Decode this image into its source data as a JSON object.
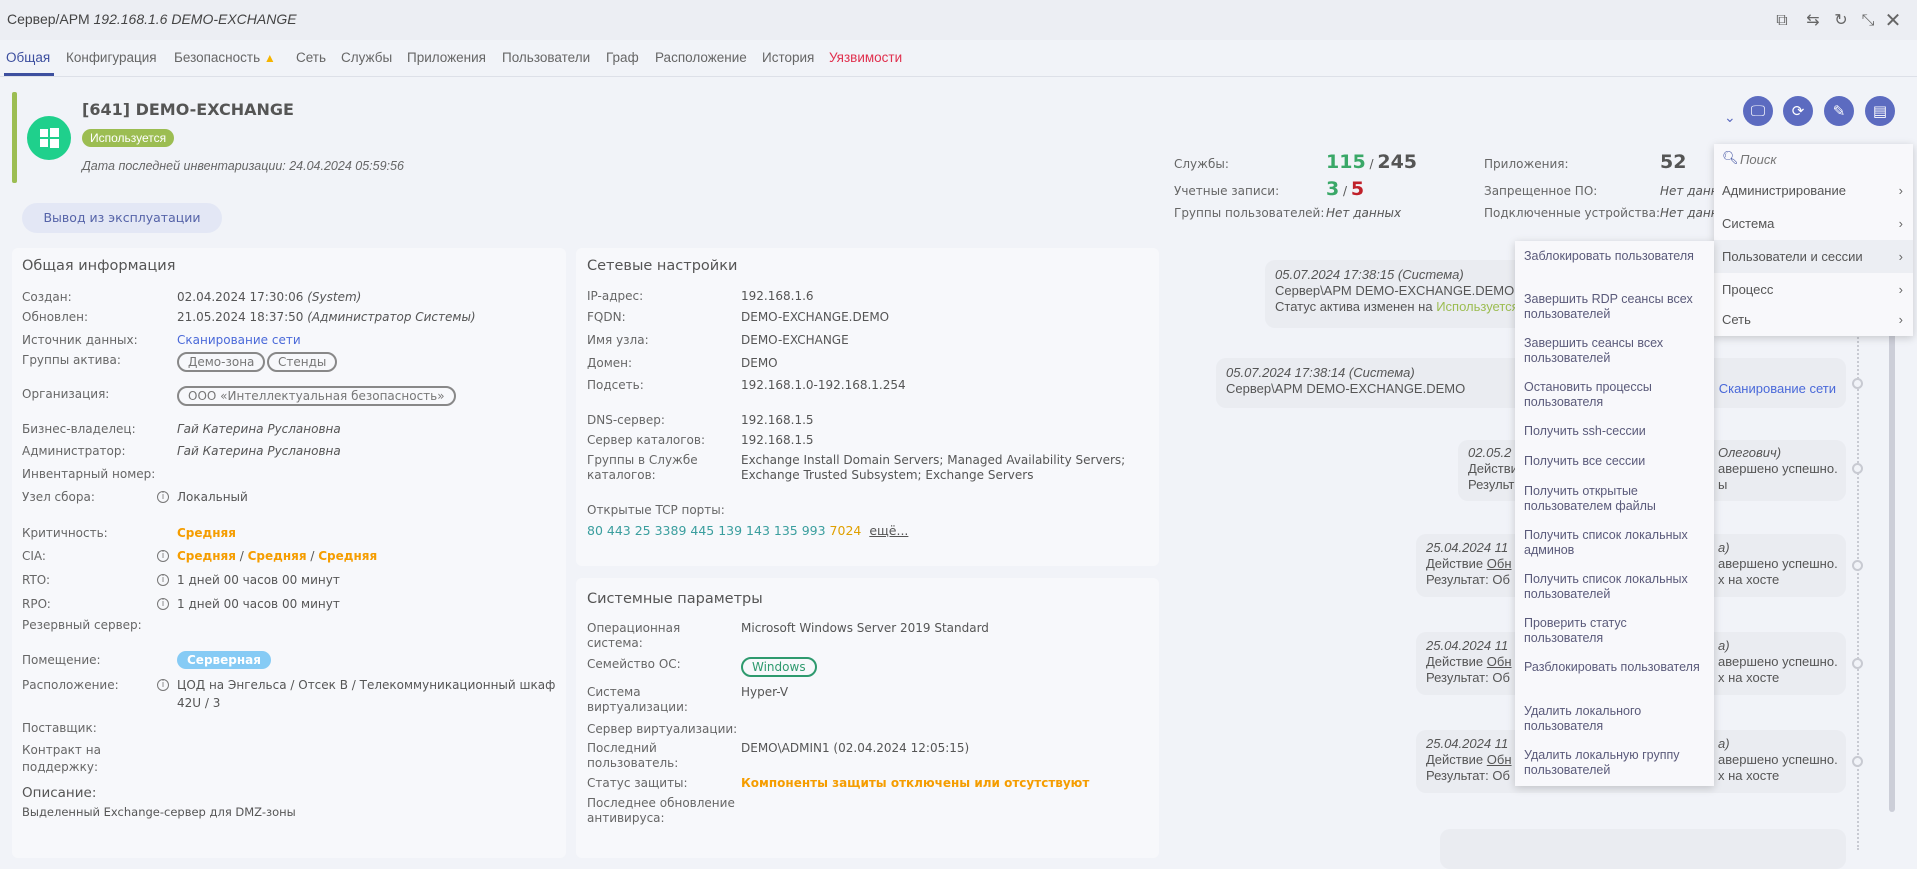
{
  "window": {
    "title_prefix": "Сервер/АРМ",
    "title_italic": "192.168.1.6 DEMO-EXCHANGE",
    "icons": [
      "copy-icon",
      "swap-icon",
      "refresh-icon",
      "minimize-icon",
      "close-icon"
    ]
  },
  "tabs": [
    {
      "label": "Общая",
      "active": true
    },
    {
      "label": "Конфигурация"
    },
    {
      "label": "Безопасность",
      "warning": true
    },
    {
      "label": "Сеть"
    },
    {
      "label": "Службы"
    },
    {
      "label": "Приложения"
    },
    {
      "label": "Пользователи"
    },
    {
      "label": "Граф"
    },
    {
      "label": "Расположение"
    },
    {
      "label": "История"
    },
    {
      "label": "Уязвимости",
      "color": "#e0304e"
    }
  ],
  "header": {
    "title": "[641] DEMO-EXCHANGE",
    "status": "Используется",
    "status_color": "#9cbd52",
    "inventory_date": "Дата последней инвентаризации: 24.04.2024 05:59:56",
    "decommission_button": "Вывод из эксплуатации",
    "os_icon": "windows-icon"
  },
  "stats": {
    "services_label": "Службы:",
    "services_active": "115",
    "services_total": "245",
    "accounts_label": "Учетные записи:",
    "accounts_a": "3",
    "accounts_b": "5",
    "user_groups_label": "Группы пользователей:",
    "user_groups_value": "Нет данных",
    "apps_label": "Приложения:",
    "apps_value": "52",
    "forbidden_label": "Запрещенное ПО:",
    "forbidden_value": "Нет данн",
    "devices_label": "Подключенные устройства:",
    "devices_value": "Нет данн"
  },
  "general": {
    "title": "Общая информация",
    "created_label": "Создан:",
    "created_value": "02.04.2024 17:30:06",
    "created_by": "(System)",
    "updated_label": "Обновлен:",
    "updated_value": "21.05.2024 18:37:50",
    "updated_by": "(Администратор Системы)",
    "source_label": "Источник данных:",
    "source_value": "Сканирование сети",
    "groups_label": "Группы актива:",
    "groups": [
      "Демо-зона",
      "Стенды"
    ],
    "org_label": "Организация:",
    "org_value": "ООО «Интеллектуальная безопасность»",
    "owner_label": "Бизнес-владелец:",
    "owner_value": "Гай Катерина Руслановна",
    "admin_label": "Администратор:",
    "admin_value": "Гай Катерина Руслановна",
    "inv_label": "Инвентарный номер:",
    "node_label": "Узел сбора:",
    "node_value": "Локальный",
    "crit_label": "Критичность:",
    "crit_value": "Средняя",
    "cia_label": "CIA:",
    "cia_values": [
      "Средняя",
      "Средняя",
      "Средняя"
    ],
    "rto_label": "RTO:",
    "rto_value": "1 дней 00 часов 00 минут",
    "rpo_label": "RPO:",
    "rpo_value": "1 дней 00 часов 00 минут",
    "backup_label": "Резервный сервер:",
    "room_label": "Помещение:",
    "room_value": "Серверная",
    "location_label": "Расположение:",
    "location_value_1": "ЦОД на Энгельса / Отсек B / Телекоммуникационный шкаф",
    "location_value_2": "42U / 3",
    "supplier_label": "Поставщик:",
    "contract_label_1": "Контракт на",
    "contract_label_2": "поддержку:",
    "desc_title": "Описание:",
    "desc_value": "Выделенный Exchange-сервер для DMZ-зоны"
  },
  "network": {
    "title": "Сетевые настройки",
    "rows": [
      {
        "label": "IP-адрес:",
        "value": "192.168.1.6"
      },
      {
        "label": "FQDN:",
        "value": "DEMO-EXCHANGE.DEMO"
      },
      {
        "label": "Имя узла:",
        "value": "DEMO-EXCHANGE"
      },
      {
        "label": "Домен:",
        "value": "DEMO"
      },
      {
        "label": "Подсеть:",
        "value": "192.168.1.0-192.168.1.254"
      },
      {
        "label": "DNS-сервер:",
        "value": "192.168.1.5"
      },
      {
        "label": "Сервер каталогов:",
        "value": "192.168.1.5"
      }
    ],
    "ad_groups_label_1": "Группы в Службе",
    "ad_groups_label_2": "каталогов:",
    "ad_groups_1": "Exchange Install Domain Servers; Managed Availability Servers;",
    "ad_groups_2": "Exchange Trusted Subsystem; Exchange Servers",
    "ports_label": "Открытые TCP порты:",
    "ports": "80 443 25 3389 445 139 143 135 993",
    "port_warn": "7024",
    "more": "ещё..."
  },
  "system": {
    "title": "Системные параметры",
    "os_label_1": "Операционная",
    "os_label_2": "система:",
    "os_value": "Microsoft Windows Server 2019 Standard",
    "family_label": "Семейство ОС:",
    "family_value": "Windows",
    "virt_label_1": "Система",
    "virt_label_2": "виртуализации:",
    "virt_value": "Hyper-V",
    "virt_server_label": "Сервер виртуализации:",
    "last_user_label_1": "Последний",
    "last_user_label_2": "пользователь:",
    "last_user_value": "DEMO\\ADMIN1 (02.04.2024 12:05:15)",
    "protect_label": "Статус защиты:",
    "protect_value": "Компоненты защиты отключены или отсутствуют",
    "av_label_1": "Последнее обновление",
    "av_label_2": "антивируса:"
  },
  "actions": {
    "icons": [
      "remote-desktop-icon",
      "sync-icon",
      "edit-icon",
      "document-icon"
    ]
  },
  "menu": {
    "search_placeholder": "Поиск",
    "items": [
      {
        "label": "Администрирование"
      },
      {
        "label": "Система"
      },
      {
        "label": "Пользователи и сессии",
        "highlighted": true
      },
      {
        "label": "Процесс"
      },
      {
        "label": "Сеть"
      }
    ]
  },
  "submenu": [
    "Заблокировать пользователя",
    "Завершить RDP сеансы всех пользователей",
    "Завершить сеансы всех пользователей",
    "Остановить процессы пользователя",
    "Получить ssh-сессии",
    "Получить все сессии",
    "Получить открытые пользователем файлы",
    "Получить список локальных админов",
    "Получить список локальных пользователей",
    "Проверить статус пользователя",
    "Разблокировать пользователя",
    "Удалить локального пользователя",
    "Удалить локальную группу пользователей"
  ],
  "timeline": [
    {
      "l1": "05.07.2024 17:38:15 (Система)",
      "l2": "Сервер\\АРМ DEMO-EXCHANGE.DEMO",
      "l3": "Статус актива изменен на ",
      "l3_status": "Используется"
    },
    {
      "l1": "05.07.2024 17:38:14 (Система)",
      "l2": "Сервер\\АРМ DEMO-EXCHANGE.DEMO",
      "r2": "Сканирование сети"
    },
    {
      "l1": "02.05.2",
      "l2": "Действи",
      "l3": "Результ",
      "r1": "Олегович)",
      "r2": "авершено успешно.",
      "r3": "ы"
    },
    {
      "l1": "25.04.2024 11",
      "l2": "Действие ",
      "l2u": "Обн",
      "l3": "Результат: Об",
      "r1": "а)",
      "r2": "авершено успешно.",
      "r3": "х на хосте"
    },
    {
      "l1": "25.04.2024 11",
      "l2": "Действие ",
      "l2u": "Обн",
      "l3": "Результат: Об",
      "r1": "а)",
      "r2": "авершено успешно.",
      "r3": "х на хосте"
    },
    {
      "l1": "25.04.2024 11",
      "l2": "Действие ",
      "l2u": "Обн",
      "l3": "Результат: Об",
      "r1": "а)",
      "r2": "авершено успешно.",
      "r3": "х на хосте"
    }
  ]
}
